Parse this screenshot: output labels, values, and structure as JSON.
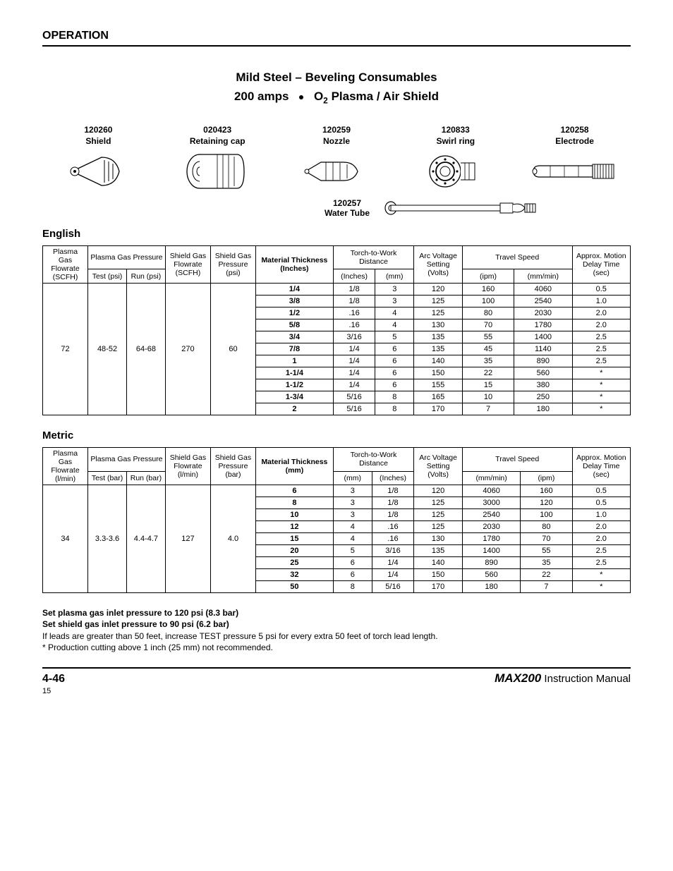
{
  "header": "OPERATION",
  "title1": "Mild Steel – Beveling Consumables",
  "title2a": "200 amps",
  "title2b": "O",
  "title2c": " Plasma / Air Shield",
  "title2sub": "2",
  "parts": [
    {
      "pn": "120260",
      "label": "Shield"
    },
    {
      "pn": "020423",
      "label": "Retaining cap"
    },
    {
      "pn": "120259",
      "label": "Nozzle"
    },
    {
      "pn": "120833",
      "label": "Swirl ring"
    },
    {
      "pn": "120258",
      "label": "Electrode"
    }
  ],
  "water_tube": {
    "pn": "120257",
    "label": "Water Tube"
  },
  "english": {
    "heading": "English",
    "headers": {
      "c0a": "Plasma Gas",
      "c0b": "Flowrate (SCFH)",
      "c1": "Plasma Gas Pressure",
      "c1a": "Test (psi)",
      "c1b": "Run (psi)",
      "c2a": "Shield Gas",
      "c2b": "Flowrate (SCFH)",
      "c3a": "Shield Gas Pressure",
      "c3b": "(psi)",
      "c4a": "Material Thickness",
      "c4b": "(Inches)",
      "c5": "Torch-to-Work Distance",
      "c5a": "(Inches)",
      "c5b": "(mm)",
      "c6a": "Arc Voltage Setting",
      "c6b": "(Volts)",
      "c7": "Travel Speed",
      "c7a": "(ipm)",
      "c7b": "(mm/min)",
      "c8a": "Approx. Motion Delay Time",
      "c8b": "(sec)"
    },
    "fixed": {
      "pgf": "72",
      "test": "48-52",
      "run": "64-68",
      "sgf": "270",
      "sgp": "60"
    },
    "rows": [
      {
        "th": "1/4",
        "din": "1/8",
        "dmm": "3",
        "v": "120",
        "ipm": "160",
        "mmm": "4060",
        "dt": "0.5"
      },
      {
        "th": "3/8",
        "din": "1/8",
        "dmm": "3",
        "v": "125",
        "ipm": "100",
        "mmm": "2540",
        "dt": "1.0"
      },
      {
        "th": "1/2",
        "din": ".16",
        "dmm": "4",
        "v": "125",
        "ipm": "80",
        "mmm": "2030",
        "dt": "2.0"
      },
      {
        "th": "5/8",
        "din": ".16",
        "dmm": "4",
        "v": "130",
        "ipm": "70",
        "mmm": "1780",
        "dt": "2.0"
      },
      {
        "th": "3/4",
        "din": "3/16",
        "dmm": "5",
        "v": "135",
        "ipm": "55",
        "mmm": "1400",
        "dt": "2.5"
      },
      {
        "th": "7/8",
        "din": "1/4",
        "dmm": "6",
        "v": "135",
        "ipm": "45",
        "mmm": "1140",
        "dt": "2.5"
      },
      {
        "th": "1",
        "din": "1/4",
        "dmm": "6",
        "v": "140",
        "ipm": "35",
        "mmm": "890",
        "dt": "2.5"
      },
      {
        "th": "1-1/4",
        "din": "1/4",
        "dmm": "6",
        "v": "150",
        "ipm": "22",
        "mmm": "560",
        "dt": "*"
      },
      {
        "th": "1-1/2",
        "din": "1/4",
        "dmm": "6",
        "v": "155",
        "ipm": "15",
        "mmm": "380",
        "dt": "*"
      },
      {
        "th": "1-3/4",
        "din": "5/16",
        "dmm": "8",
        "v": "165",
        "ipm": "10",
        "mmm": "250",
        "dt": "*"
      },
      {
        "th": "2",
        "din": "5/16",
        "dmm": "8",
        "v": "170",
        "ipm": "7",
        "mmm": "180",
        "dt": "*"
      }
    ]
  },
  "metric": {
    "heading": "Metric",
    "headers": {
      "c0a": "Plasma Gas",
      "c0b": "Flowrate (l/min)",
      "c1": "Plasma Gas Pressure",
      "c1a": "Test (bar)",
      "c1b": "Run (bar)",
      "c2a": "Shield Gas",
      "c2b": "Flowrate (l/min)",
      "c3a": "Shield Gas Pressure",
      "c3b": "(bar)",
      "c4a": "Material Thickness",
      "c4b": "(mm)",
      "c5": "Torch-to-Work Distance",
      "c5a": "(mm)",
      "c5b": "(Inches)",
      "c6a": "Arc Voltage Setting",
      "c6b": "(Volts)",
      "c7": "Travel Speed",
      "c7a": "(mm/min)",
      "c7b": "(ipm)",
      "c8a": "Approx. Motion Delay Time",
      "c8b": "(sec)"
    },
    "fixed": {
      "pgf": "34",
      "test": "3.3-3.6",
      "run": "4.4-4.7",
      "sgf": "127",
      "sgp": "4.0"
    },
    "rows": [
      {
        "th": "6",
        "dmm": "3",
        "din": "1/8",
        "v": "120",
        "s1": "4060",
        "s2": "160",
        "dt": "0.5"
      },
      {
        "th": "8",
        "dmm": "3",
        "din": "1/8",
        "v": "125",
        "s1": "3000",
        "s2": "120",
        "dt": "0.5"
      },
      {
        "th": "10",
        "dmm": "3",
        "din": "1/8",
        "v": "125",
        "s1": "2540",
        "s2": "100",
        "dt": "1.0"
      },
      {
        "th": "12",
        "dmm": "4",
        "din": ".16",
        "v": "125",
        "s1": "2030",
        "s2": "80",
        "dt": "2.0"
      },
      {
        "th": "15",
        "dmm": "4",
        "din": ".16",
        "v": "130",
        "s1": "1780",
        "s2": "70",
        "dt": "2.0"
      },
      {
        "th": "20",
        "dmm": "5",
        "din": "3/16",
        "v": "135",
        "s1": "1400",
        "s2": "55",
        "dt": "2.5"
      },
      {
        "th": "25",
        "dmm": "6",
        "din": "1/4",
        "v": "140",
        "s1": "890",
        "s2": "35",
        "dt": "2.5"
      },
      {
        "th": "32",
        "dmm": "6",
        "din": "1/4",
        "v": "150",
        "s1": "560",
        "s2": "22",
        "dt": "*"
      },
      {
        "th": "50",
        "dmm": "8",
        "din": "5/16",
        "v": "170",
        "s1": "180",
        "s2": "7",
        "dt": "*"
      }
    ]
  },
  "notes": {
    "l1": "Set plasma gas inlet pressure to 120 psi (8.3 bar)",
    "l2": "Set shield gas inlet pressure to 90 psi (6.2 bar)",
    "l3": "If leads are greater than 50 feet, increase TEST pressure 5 psi for every extra 50 feet of torch lead length.",
    "l4": "* Production cutting above 1 inch (25 mm) not recommended."
  },
  "footer": {
    "page": "4-46",
    "brand": "MAX200",
    "manual": "  Instruction Manual",
    "sheet": "15"
  }
}
